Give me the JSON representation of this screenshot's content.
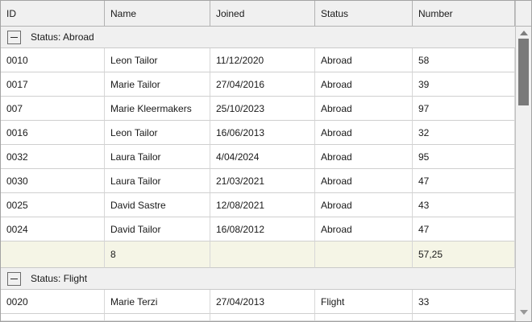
{
  "colors": {
    "header_bg": "#f0f0f0",
    "group_row_bg": "#f0f0f0",
    "data_row_bg": "#ffffff",
    "summary_row_bg": "#f5f5e6",
    "header_border": "#b2b2b2",
    "cell_border": "#d7d7d7",
    "text": "#1a1a1a",
    "scrollbar_track": "#f0f0f0",
    "scrollbar_thumb": "#7a7a7a"
  },
  "grid": {
    "columns": [
      "ID",
      "Name",
      "Joined",
      "Status",
      "Number"
    ],
    "groups": [
      {
        "label": "Status: Abroad",
        "collapse_icon": "minus-box",
        "rows": [
          [
            "0010",
            "Leon Tailor",
            "11/12/2020",
            "Abroad",
            "58"
          ],
          [
            "0017",
            "Marie Tailor",
            "27/04/2016",
            "Abroad",
            "39"
          ],
          [
            "007",
            "Marie Kleermakers",
            "25/10/2023",
            "Abroad",
            "97"
          ],
          [
            "0016",
            "Leon Tailor",
            "16/06/2013",
            "Abroad",
            "32"
          ],
          [
            "0032",
            "Laura Tailor",
            "4/04/2024",
            "Abroad",
            "95"
          ],
          [
            "0030",
            "Laura Tailor",
            "21/03/2021",
            "Abroad",
            "47"
          ],
          [
            "0025",
            "David Sastre",
            "12/08/2021",
            "Abroad",
            "43"
          ],
          [
            "0024",
            "David Tailor",
            "16/08/2012",
            "Abroad",
            "47"
          ]
        ],
        "summary": [
          "",
          "8",
          "",
          "",
          "57,25"
        ]
      },
      {
        "label": "Status: Flight",
        "collapse_icon": "minus-box",
        "rows": [
          [
            "0020",
            "Marie Terzi",
            "27/04/2013",
            "Flight",
            "33"
          ]
        ],
        "summary": null
      }
    ],
    "trailing_empty_row": true
  }
}
